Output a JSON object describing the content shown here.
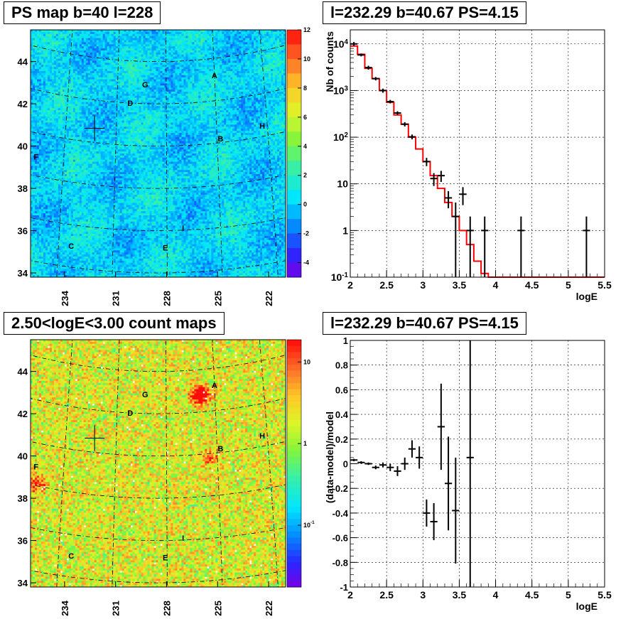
{
  "panels": {
    "ps_map": {
      "title": "PS map b=40 l=228"
    },
    "spectrum": {
      "title": "l=232.29 b=40.67 PS=4.15"
    },
    "count_map": {
      "title": "2.50<logE<3.00 count maps"
    },
    "residual": {
      "title": "l=232.29 b=40.67 PS=4.15"
    }
  },
  "colors": {
    "model_line": "#ff0000",
    "data_points": "#000000",
    "grid": "#000000"
  },
  "chart_data": [
    {
      "type": "heatmap",
      "name": "ps_map",
      "title": "PS map b=40 l=228",
      "x_ticks": [
        "234",
        "231",
        "228",
        "225",
        "222"
      ],
      "y_ticks": [
        "34",
        "36",
        "38",
        "40",
        "42",
        "44"
      ],
      "colorbar_ticks": [
        "12",
        "10",
        "8",
        "6",
        "4",
        "2",
        "0",
        "-2",
        "-4"
      ],
      "colorbar_range": [
        -5,
        12
      ],
      "sources": [
        {
          "label": "A",
          "l": 225.0,
          "b": 43.2
        },
        {
          "label": "B",
          "l": 224.8,
          "b": 40.2
        },
        {
          "label": "C",
          "l": 233.3,
          "b": 35.0
        },
        {
          "label": "D",
          "l": 230.2,
          "b": 42.0
        },
        {
          "label": "E",
          "l": 228.1,
          "b": 35.2
        },
        {
          "label": "F",
          "l": 235.6,
          "b": 38.9
        },
        {
          "label": "G",
          "l": 229.3,
          "b": 42.9
        },
        {
          "label": "H",
          "l": 222.3,
          "b": 40.5
        },
        {
          "label": "I",
          "l": 227.1,
          "b": 36.1
        }
      ],
      "marker": {
        "l": 232.29,
        "b": 40.67
      }
    },
    {
      "type": "line",
      "name": "spectrum",
      "title": "l=232.29 b=40.67 PS=4.15",
      "xlabel": "logE",
      "ylabel": "Nb of counts",
      "xlim": [
        2,
        5.5
      ],
      "ylim": [
        0.1,
        20000
      ],
      "ylog": true,
      "x_ticks": [
        "2",
        "2.5",
        "3",
        "3.5",
        "4",
        "4.5",
        "5",
        "5.5"
      ],
      "y_ticks": [
        "10^-1",
        "1",
        "10",
        "10^2",
        "10^3",
        "10^4"
      ],
      "model_step": {
        "edges": [
          2.0,
          2.1,
          2.2,
          2.3,
          2.4,
          2.5,
          2.6,
          2.7,
          2.8,
          2.9,
          3.0,
          3.1,
          3.2,
          3.3,
          3.4,
          3.5,
          3.6,
          3.7,
          3.8,
          3.9,
          4.0,
          5.5
        ],
        "values": [
          9000,
          6000,
          3000,
          1800,
          1000,
          560,
          300,
          190,
          100,
          56,
          30,
          15,
          8,
          4,
          2,
          1,
          0.5,
          0.22,
          0.12,
          0.1,
          0.1
        ]
      },
      "data": [
        {
          "x": 2.05,
          "y": 10000,
          "lo": 9000,
          "hi": 11000
        },
        {
          "x": 2.15,
          "y": 5800,
          "lo": 5400,
          "hi": 6200
        },
        {
          "x": 2.25,
          "y": 3100,
          "lo": 2800,
          "hi": 3400
        },
        {
          "x": 2.35,
          "y": 1800,
          "lo": 1650,
          "hi": 1950
        },
        {
          "x": 2.45,
          "y": 1000,
          "lo": 900,
          "hi": 1100
        },
        {
          "x": 2.55,
          "y": 580,
          "lo": 530,
          "hi": 630
        },
        {
          "x": 2.65,
          "y": 330,
          "lo": 300,
          "hi": 360
        },
        {
          "x": 2.75,
          "y": 190,
          "lo": 170,
          "hi": 210
        },
        {
          "x": 2.85,
          "y": 102,
          "lo": 90,
          "hi": 114
        },
        {
          "x": 3.05,
          "y": 30,
          "lo": 24,
          "hi": 36
        },
        {
          "x": 3.15,
          "y": 13,
          "lo": 9,
          "hi": 17
        },
        {
          "x": 3.25,
          "y": 15,
          "lo": 11,
          "hi": 19
        },
        {
          "x": 3.35,
          "y": 5,
          "lo": 3,
          "hi": 7
        },
        {
          "x": 3.45,
          "y": 2,
          "lo": 0.1,
          "hi": 4
        },
        {
          "x": 3.55,
          "y": 6,
          "lo": 3.5,
          "hi": 8.5
        },
        {
          "x": 3.65,
          "y": 1,
          "lo": 0.1,
          "hi": 2
        },
        {
          "x": 3.85,
          "y": 1,
          "lo": 0.1,
          "hi": 2
        },
        {
          "x": 4.35,
          "y": 1,
          "lo": 0.1,
          "hi": 2
        },
        {
          "x": 5.25,
          "y": 1,
          "lo": 0.1,
          "hi": 2
        }
      ]
    },
    {
      "type": "heatmap",
      "name": "count_map",
      "title": "2.50<logE<3.00 count maps",
      "x_ticks": [
        "234",
        "231",
        "228",
        "225",
        "222"
      ],
      "y_ticks": [
        "34",
        "36",
        "38",
        "40",
        "42",
        "44"
      ],
      "colorbar_ticks": [
        "10",
        "1",
        "10^-1"
      ],
      "colorbar_log": true,
      "sources": [
        {
          "label": "A",
          "l": 225.0,
          "b": 43.2
        },
        {
          "label": "B",
          "l": 224.8,
          "b": 40.2
        },
        {
          "label": "C",
          "l": 233.3,
          "b": 35.0
        },
        {
          "label": "D",
          "l": 230.2,
          "b": 42.0
        },
        {
          "label": "E",
          "l": 228.1,
          "b": 35.2
        },
        {
          "label": "F",
          "l": 235.6,
          "b": 38.9
        },
        {
          "label": "G",
          "l": 229.3,
          "b": 42.9
        },
        {
          "label": "H",
          "l": 222.3,
          "b": 40.5
        },
        {
          "label": "I",
          "l": 227.1,
          "b": 36.1
        }
      ],
      "marker": {
        "l": 232.29,
        "b": 40.67
      }
    },
    {
      "type": "scatter",
      "name": "residual",
      "title": "l=232.29 b=40.67 PS=4.15",
      "xlabel": "logE",
      "ylabel": "(data-model)/model",
      "xlim": [
        2,
        5.5
      ],
      "ylim": [
        -1,
        1
      ],
      "x_ticks": [
        "2",
        "2.5",
        "3",
        "3.5",
        "4",
        "4.5",
        "5",
        "5.5"
      ],
      "y_ticks": [
        "-1",
        "-0.8",
        "-0.6",
        "-0.4",
        "-0.2",
        "0",
        "0.2",
        "0.4",
        "0.6",
        "0.8",
        "1"
      ],
      "data": [
        {
          "x": 2.05,
          "y": 0.03,
          "e": 0.01
        },
        {
          "x": 2.15,
          "y": 0.01,
          "e": 0.01
        },
        {
          "x": 2.25,
          "y": 0.0,
          "e": 0.01
        },
        {
          "x": 2.35,
          "y": -0.03,
          "e": 0.015
        },
        {
          "x": 2.45,
          "y": -0.01,
          "e": 0.02
        },
        {
          "x": 2.55,
          "y": -0.03,
          "e": 0.03
        },
        {
          "x": 2.65,
          "y": -0.06,
          "e": 0.04
        },
        {
          "x": 2.75,
          "y": 0.0,
          "e": 0.05
        },
        {
          "x": 2.85,
          "y": 0.12,
          "e": 0.07
        },
        {
          "x": 2.95,
          "y": 0.05,
          "e": 0.09
        },
        {
          "x": 3.05,
          "y": -0.4,
          "e": 0.11
        },
        {
          "x": 3.15,
          "y": -0.47,
          "e": 0.15
        },
        {
          "x": 3.25,
          "y": 0.3,
          "e": 0.35
        },
        {
          "x": 3.35,
          "y": -0.16,
          "e": 0.38
        },
        {
          "x": 3.45,
          "y": -0.38,
          "e": 0.43
        },
        {
          "x": 3.65,
          "y": 0.05,
          "e": 1.2
        }
      ]
    }
  ]
}
